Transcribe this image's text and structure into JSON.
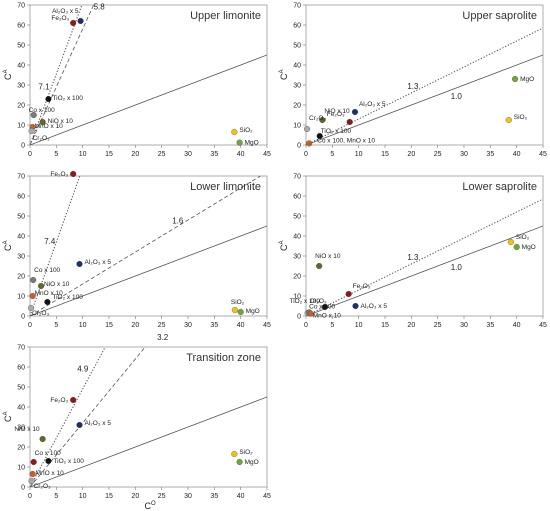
{
  "chart_data": [
    {
      "type": "scatter",
      "title": "Upper limonite",
      "xlabel": "",
      "ylabel": "C^A",
      "xlim": [
        0,
        45
      ],
      "ylim": [
        0,
        70
      ],
      "xticks": [
        0,
        5,
        10,
        15,
        20,
        25,
        30,
        35,
        40,
        45
      ],
      "yticks": [
        0,
        10,
        20,
        30,
        40,
        50,
        60,
        70
      ],
      "points": [
        {
          "label": "Al₂O₃ x 5",
          "x": 9.6,
          "y": 62,
          "color": "#1f2f6e"
        },
        {
          "label": "Fe₂O₃",
          "x": 8.2,
          "y": 61,
          "color": "#8b1a1a"
        },
        {
          "label": "TiO₂ x 100",
          "x": 3.5,
          "y": 23,
          "color": "#111111"
        },
        {
          "label": "Co x 100",
          "x": 0.7,
          "y": 15,
          "color": "#7a7a7a"
        },
        {
          "label": "NiO x 10",
          "x": 2.4,
          "y": 11.5,
          "color": "#5a6b2a"
        },
        {
          "label": "MnO x 10",
          "x": 0.5,
          "y": 9,
          "color": "#c4622d"
        },
        {
          "label": "Cr₂O₃",
          "x": 0.3,
          "y": 7,
          "color": "#aaaaaa"
        },
        {
          "label": "SiO₂",
          "x": 38.8,
          "y": 6.5,
          "color": "#f2c316"
        },
        {
          "label": "MgO",
          "x": 39.8,
          "y": 1.2,
          "color": "#6ea83a"
        }
      ],
      "lines": [
        {
          "slope": 1,
          "style": "solid",
          "label": ""
        },
        {
          "slope": 5.8,
          "style": "dashed",
          "label": "5.8"
        },
        {
          "slope": 7.1,
          "style": "dotted",
          "label": "7.1"
        }
      ]
    },
    {
      "type": "scatter",
      "title": "Upper saprolite",
      "xlabel": "",
      "ylabel": "C^A",
      "xlim": [
        0,
        45
      ],
      "ylim": [
        0,
        70
      ],
      "xticks": [
        0,
        5,
        10,
        15,
        20,
        25,
        30,
        35,
        40,
        45
      ],
      "yticks": [
        0,
        10,
        20,
        30,
        40,
        50,
        60,
        70
      ],
      "points": [
        {
          "label": "MgO",
          "x": 39.7,
          "y": 33,
          "color": "#6ea83a"
        },
        {
          "label": "Al₂O₃ x 5",
          "x": 9.3,
          "y": 16.5,
          "color": "#1f2f6e"
        },
        {
          "label": "NiO x 10",
          "x": 3.1,
          "y": 12.5,
          "color": "#5a6b2a"
        },
        {
          "label": "Fe₂O₃",
          "x": 8.3,
          "y": 11.5,
          "color": "#8b1a1a"
        },
        {
          "label": "SiO₂",
          "x": 38.5,
          "y": 12.5,
          "color": "#f2c316"
        },
        {
          "label": "Cr₂O₃",
          "x": 0.2,
          "y": 8,
          "color": "#aaaaaa"
        },
        {
          "label": "TiO₂ x 100",
          "x": 2.6,
          "y": 4.5,
          "color": "#111111"
        },
        {
          "label": "Co x 100, MnO x 10",
          "x": 0.6,
          "y": 0.8,
          "color": "#c4622d"
        }
      ],
      "lines": [
        {
          "slope": 1,
          "style": "solid",
          "label": "1.0"
        },
        {
          "slope": 1.3,
          "style": "dotted",
          "label": "1.3"
        }
      ]
    },
    {
      "type": "scatter",
      "title": "Lower limonite",
      "xlabel": "",
      "ylabel": "C^A",
      "xlim": [
        0,
        45
      ],
      "ylim": [
        0,
        70
      ],
      "xticks": [
        0,
        5,
        10,
        15,
        20,
        25,
        30,
        35,
        40,
        45
      ],
      "yticks": [
        0,
        10,
        20,
        30,
        40,
        50,
        60,
        70
      ],
      "points": [
        {
          "label": "Fe₂O₃",
          "x": 8.2,
          "y": 71,
          "color": "#8b1a1a"
        },
        {
          "label": "Al₂O₃ x 5",
          "x": 9.4,
          "y": 26,
          "color": "#1f2f6e"
        },
        {
          "label": "Co x 100",
          "x": 0.6,
          "y": 18,
          "color": "#7a7a7a"
        },
        {
          "label": "NiO x 10",
          "x": 2.1,
          "y": 15,
          "color": "#5a6b2a"
        },
        {
          "label": "MnO x 10",
          "x": 0.5,
          "y": 10,
          "color": "#c4622d"
        },
        {
          "label": "TiO₂ x 100",
          "x": 3.3,
          "y": 7,
          "color": "#111111"
        },
        {
          "label": "Cr₂O₃",
          "x": 0.2,
          "y": 4,
          "color": "#aaaaaa"
        },
        {
          "label": "SiO₂",
          "x": 38.9,
          "y": 3,
          "color": "#f2c316"
        },
        {
          "label": "MgO",
          "x": 40,
          "y": 2,
          "color": "#6ea83a"
        }
      ],
      "lines": [
        {
          "slope": 1,
          "style": "solid",
          "label": ""
        },
        {
          "slope": 1.6,
          "style": "dashed",
          "label": "1.6"
        },
        {
          "slope": 7.4,
          "style": "dotted",
          "label": "7.4"
        }
      ]
    },
    {
      "type": "scatter",
      "title": "Lower saprolite",
      "xlabel": "",
      "ylabel": "C^A",
      "xlim": [
        0,
        45
      ],
      "ylim": [
        0,
        70
      ],
      "xticks": [
        0,
        5,
        10,
        15,
        20,
        25,
        30,
        35,
        40,
        45
      ],
      "yticks": [
        0,
        10,
        20,
        30,
        40,
        50,
        60,
        70
      ],
      "points": [
        {
          "label": "SiO₂",
          "x": 38.9,
          "y": 37,
          "color": "#f2c316"
        },
        {
          "label": "MgO",
          "x": 40,
          "y": 34.5,
          "color": "#6ea83a"
        },
        {
          "label": "NiO x 10",
          "x": 2.5,
          "y": 25,
          "color": "#5a6b2a"
        },
        {
          "label": "Fe₂O₃",
          "x": 8.1,
          "y": 11,
          "color": "#8b1a1a"
        },
        {
          "label": "Al₂O₃ x 5",
          "x": 9.4,
          "y": 5,
          "color": "#1f2f6e"
        },
        {
          "label": "TiO₂ x 100",
          "x": 3.6,
          "y": 4.5,
          "color": "#111111"
        },
        {
          "label": "Cr₂O₃",
          "x": 0.3,
          "y": 1.5,
          "color": "#aaaaaa"
        },
        {
          "label": "Co x 100",
          "x": 0.6,
          "y": 1.8,
          "color": "#7a7a7a"
        },
        {
          "label": "MnO x 10",
          "x": 0.9,
          "y": 1.2,
          "color": "#c4622d"
        }
      ],
      "lines": [
        {
          "slope": 1,
          "style": "solid",
          "label": "1.0"
        },
        {
          "slope": 1.3,
          "style": "dotted",
          "label": "1.3"
        }
      ]
    },
    {
      "type": "scatter",
      "title": "Transition zone",
      "xlabel": "C^O",
      "ylabel": "C^A",
      "xlim": [
        0,
        45
      ],
      "ylim": [
        0,
        70
      ],
      "xticks": [
        0,
        5,
        10,
        15,
        20,
        25,
        30,
        35,
        40,
        45
      ],
      "yticks": [
        0,
        10,
        20,
        30,
        40,
        50,
        60,
        70
      ],
      "points": [
        {
          "label": "Fe₂O₃",
          "x": 8.2,
          "y": 43.5,
          "color": "#8b1a1a"
        },
        {
          "label": "Al₂O₃ x 5",
          "x": 9.4,
          "y": 31,
          "color": "#1f2f6e"
        },
        {
          "label": "NiO x 10",
          "x": 2.4,
          "y": 24,
          "color": "#5a6b2a"
        },
        {
          "label": "Co x 100",
          "x": 0.7,
          "y": 12.5,
          "color": "#8b1a1a"
        },
        {
          "label": "TiO₂ x 100",
          "x": 3.5,
          "y": 13,
          "color": "#111111"
        },
        {
          "label": "MnO x 10",
          "x": 0.5,
          "y": 6.5,
          "color": "#c4622d"
        },
        {
          "label": "Cr₂O₃",
          "x": 0.3,
          "y": 3,
          "color": "#aaaaaa"
        },
        {
          "label": "SiO₂",
          "x": 38.8,
          "y": 16.5,
          "color": "#f2c316"
        },
        {
          "label": "MgO",
          "x": 39.8,
          "y": 12.5,
          "color": "#6ea83a"
        }
      ],
      "lines": [
        {
          "slope": 1,
          "style": "solid",
          "label": ""
        },
        {
          "slope": 3.2,
          "style": "dashed",
          "label": "3.2"
        },
        {
          "slope": 4.9,
          "style": "dotted",
          "label": "4.9"
        }
      ]
    }
  ]
}
